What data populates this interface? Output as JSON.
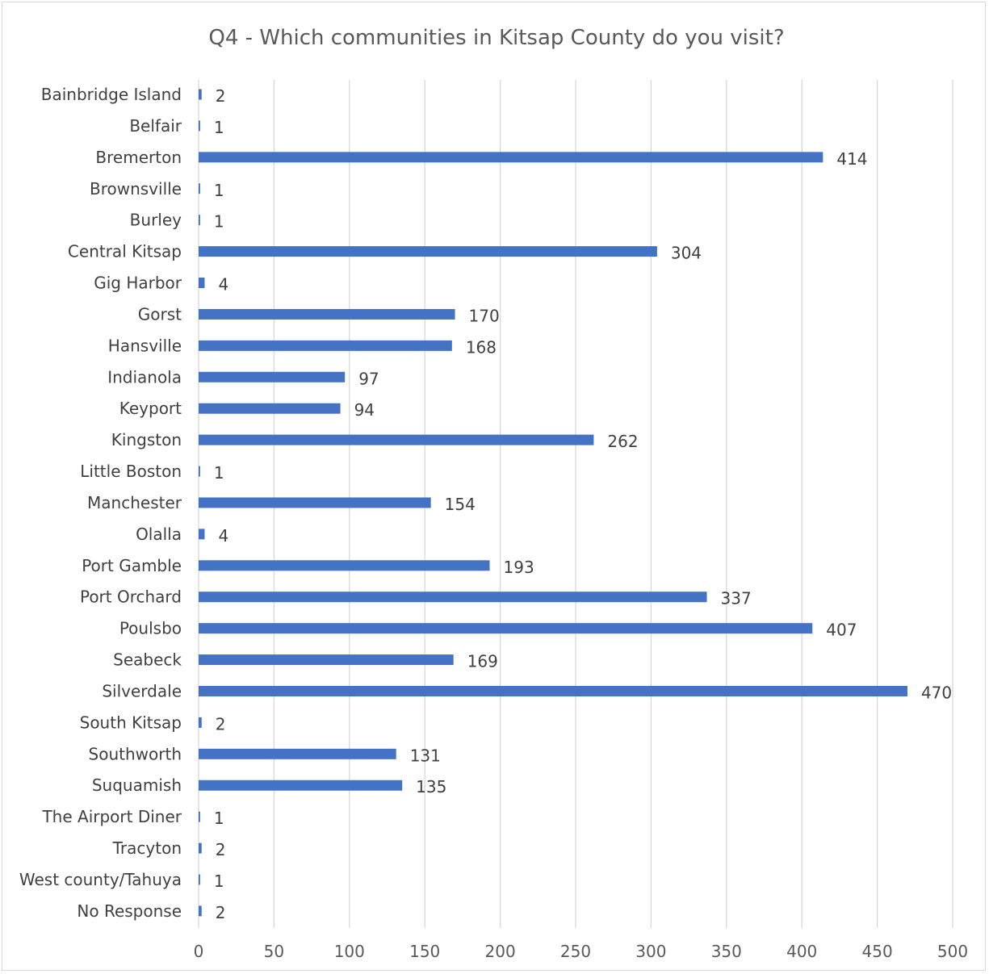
{
  "chart_data": {
    "type": "bar",
    "orientation": "horizontal",
    "title": "Q4 - Which communities in Kitsap County do you visit?",
    "xlabel": "",
    "ylabel": "",
    "xlim": [
      0,
      500
    ],
    "x_ticks": [
      0,
      50,
      100,
      150,
      200,
      250,
      300,
      350,
      400,
      450,
      500
    ],
    "grid": "vertical",
    "legend": "none",
    "bar_color": "#4472c4",
    "categories": [
      "Bainbridge Island",
      "Belfair",
      "Bremerton",
      "Brownsville",
      "Burley",
      "Central Kitsap",
      "Gig Harbor",
      "Gorst",
      "Hansville",
      "Indianola",
      "Keyport",
      "Kingston",
      "Little Boston",
      "Manchester",
      "Olalla",
      "Port Gamble",
      "Port Orchard",
      "Poulsbo",
      "Seabeck",
      "Silverdale",
      "South Kitsap",
      "Southworth",
      "Suquamish",
      "The Airport Diner",
      "Tracyton",
      "West county/Tahuya",
      "No Response"
    ],
    "values": [
      2,
      1,
      414,
      1,
      1,
      304,
      4,
      170,
      168,
      97,
      94,
      262,
      1,
      154,
      4,
      193,
      337,
      407,
      169,
      470,
      2,
      131,
      135,
      1,
      2,
      1,
      2
    ]
  }
}
